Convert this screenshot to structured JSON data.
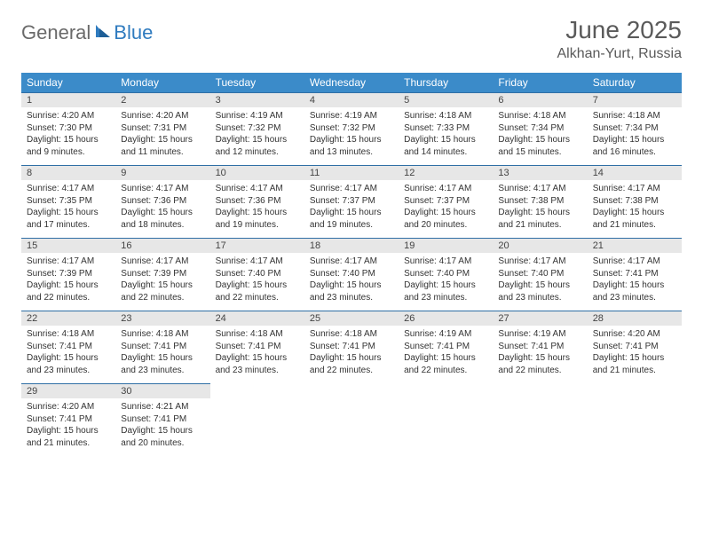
{
  "logo": {
    "general": "General",
    "blue": "Blue"
  },
  "title": "June 2025",
  "location": "Alkhan-Yurt, Russia",
  "colors": {
    "header_bg": "#3b8bc9",
    "header_text": "#ffffff",
    "daynum_bg": "#e7e7e7",
    "daynum_border": "#2f6fa5",
    "body_text": "#333333",
    "title_text": "#5a5a5a",
    "logo_gray": "#6a6a6a",
    "logo_blue": "#2f7bbf",
    "page_bg": "#ffffff"
  },
  "fonts": {
    "title_size_pt": 21,
    "location_size_pt": 12,
    "header_size_pt": 9,
    "cell_size_pt": 7.5,
    "logo_size_pt": 16
  },
  "weekdays": [
    "Sunday",
    "Monday",
    "Tuesday",
    "Wednesday",
    "Thursday",
    "Friday",
    "Saturday"
  ],
  "weeks": [
    [
      {
        "n": "1",
        "sr": "Sunrise: 4:20 AM",
        "ss": "Sunset: 7:30 PM",
        "d1": "Daylight: 15 hours",
        "d2": "and 9 minutes."
      },
      {
        "n": "2",
        "sr": "Sunrise: 4:20 AM",
        "ss": "Sunset: 7:31 PM",
        "d1": "Daylight: 15 hours",
        "d2": "and 11 minutes."
      },
      {
        "n": "3",
        "sr": "Sunrise: 4:19 AM",
        "ss": "Sunset: 7:32 PM",
        "d1": "Daylight: 15 hours",
        "d2": "and 12 minutes."
      },
      {
        "n": "4",
        "sr": "Sunrise: 4:19 AM",
        "ss": "Sunset: 7:32 PM",
        "d1": "Daylight: 15 hours",
        "d2": "and 13 minutes."
      },
      {
        "n": "5",
        "sr": "Sunrise: 4:18 AM",
        "ss": "Sunset: 7:33 PM",
        "d1": "Daylight: 15 hours",
        "d2": "and 14 minutes."
      },
      {
        "n": "6",
        "sr": "Sunrise: 4:18 AM",
        "ss": "Sunset: 7:34 PM",
        "d1": "Daylight: 15 hours",
        "d2": "and 15 minutes."
      },
      {
        "n": "7",
        "sr": "Sunrise: 4:18 AM",
        "ss": "Sunset: 7:34 PM",
        "d1": "Daylight: 15 hours",
        "d2": "and 16 minutes."
      }
    ],
    [
      {
        "n": "8",
        "sr": "Sunrise: 4:17 AM",
        "ss": "Sunset: 7:35 PM",
        "d1": "Daylight: 15 hours",
        "d2": "and 17 minutes."
      },
      {
        "n": "9",
        "sr": "Sunrise: 4:17 AM",
        "ss": "Sunset: 7:36 PM",
        "d1": "Daylight: 15 hours",
        "d2": "and 18 minutes."
      },
      {
        "n": "10",
        "sr": "Sunrise: 4:17 AM",
        "ss": "Sunset: 7:36 PM",
        "d1": "Daylight: 15 hours",
        "d2": "and 19 minutes."
      },
      {
        "n": "11",
        "sr": "Sunrise: 4:17 AM",
        "ss": "Sunset: 7:37 PM",
        "d1": "Daylight: 15 hours",
        "d2": "and 19 minutes."
      },
      {
        "n": "12",
        "sr": "Sunrise: 4:17 AM",
        "ss": "Sunset: 7:37 PM",
        "d1": "Daylight: 15 hours",
        "d2": "and 20 minutes."
      },
      {
        "n": "13",
        "sr": "Sunrise: 4:17 AM",
        "ss": "Sunset: 7:38 PM",
        "d1": "Daylight: 15 hours",
        "d2": "and 21 minutes."
      },
      {
        "n": "14",
        "sr": "Sunrise: 4:17 AM",
        "ss": "Sunset: 7:38 PM",
        "d1": "Daylight: 15 hours",
        "d2": "and 21 minutes."
      }
    ],
    [
      {
        "n": "15",
        "sr": "Sunrise: 4:17 AM",
        "ss": "Sunset: 7:39 PM",
        "d1": "Daylight: 15 hours",
        "d2": "and 22 minutes."
      },
      {
        "n": "16",
        "sr": "Sunrise: 4:17 AM",
        "ss": "Sunset: 7:39 PM",
        "d1": "Daylight: 15 hours",
        "d2": "and 22 minutes."
      },
      {
        "n": "17",
        "sr": "Sunrise: 4:17 AM",
        "ss": "Sunset: 7:40 PM",
        "d1": "Daylight: 15 hours",
        "d2": "and 22 minutes."
      },
      {
        "n": "18",
        "sr": "Sunrise: 4:17 AM",
        "ss": "Sunset: 7:40 PM",
        "d1": "Daylight: 15 hours",
        "d2": "and 23 minutes."
      },
      {
        "n": "19",
        "sr": "Sunrise: 4:17 AM",
        "ss": "Sunset: 7:40 PM",
        "d1": "Daylight: 15 hours",
        "d2": "and 23 minutes."
      },
      {
        "n": "20",
        "sr": "Sunrise: 4:17 AM",
        "ss": "Sunset: 7:40 PM",
        "d1": "Daylight: 15 hours",
        "d2": "and 23 minutes."
      },
      {
        "n": "21",
        "sr": "Sunrise: 4:17 AM",
        "ss": "Sunset: 7:41 PM",
        "d1": "Daylight: 15 hours",
        "d2": "and 23 minutes."
      }
    ],
    [
      {
        "n": "22",
        "sr": "Sunrise: 4:18 AM",
        "ss": "Sunset: 7:41 PM",
        "d1": "Daylight: 15 hours",
        "d2": "and 23 minutes."
      },
      {
        "n": "23",
        "sr": "Sunrise: 4:18 AM",
        "ss": "Sunset: 7:41 PM",
        "d1": "Daylight: 15 hours",
        "d2": "and 23 minutes."
      },
      {
        "n": "24",
        "sr": "Sunrise: 4:18 AM",
        "ss": "Sunset: 7:41 PM",
        "d1": "Daylight: 15 hours",
        "d2": "and 23 minutes."
      },
      {
        "n": "25",
        "sr": "Sunrise: 4:18 AM",
        "ss": "Sunset: 7:41 PM",
        "d1": "Daylight: 15 hours",
        "d2": "and 22 minutes."
      },
      {
        "n": "26",
        "sr": "Sunrise: 4:19 AM",
        "ss": "Sunset: 7:41 PM",
        "d1": "Daylight: 15 hours",
        "d2": "and 22 minutes."
      },
      {
        "n": "27",
        "sr": "Sunrise: 4:19 AM",
        "ss": "Sunset: 7:41 PM",
        "d1": "Daylight: 15 hours",
        "d2": "and 22 minutes."
      },
      {
        "n": "28",
        "sr": "Sunrise: 4:20 AM",
        "ss": "Sunset: 7:41 PM",
        "d1": "Daylight: 15 hours",
        "d2": "and 21 minutes."
      }
    ],
    [
      {
        "n": "29",
        "sr": "Sunrise: 4:20 AM",
        "ss": "Sunset: 7:41 PM",
        "d1": "Daylight: 15 hours",
        "d2": "and 21 minutes."
      },
      {
        "n": "30",
        "sr": "Sunrise: 4:21 AM",
        "ss": "Sunset: 7:41 PM",
        "d1": "Daylight: 15 hours",
        "d2": "and 20 minutes."
      },
      null,
      null,
      null,
      null,
      null
    ]
  ]
}
